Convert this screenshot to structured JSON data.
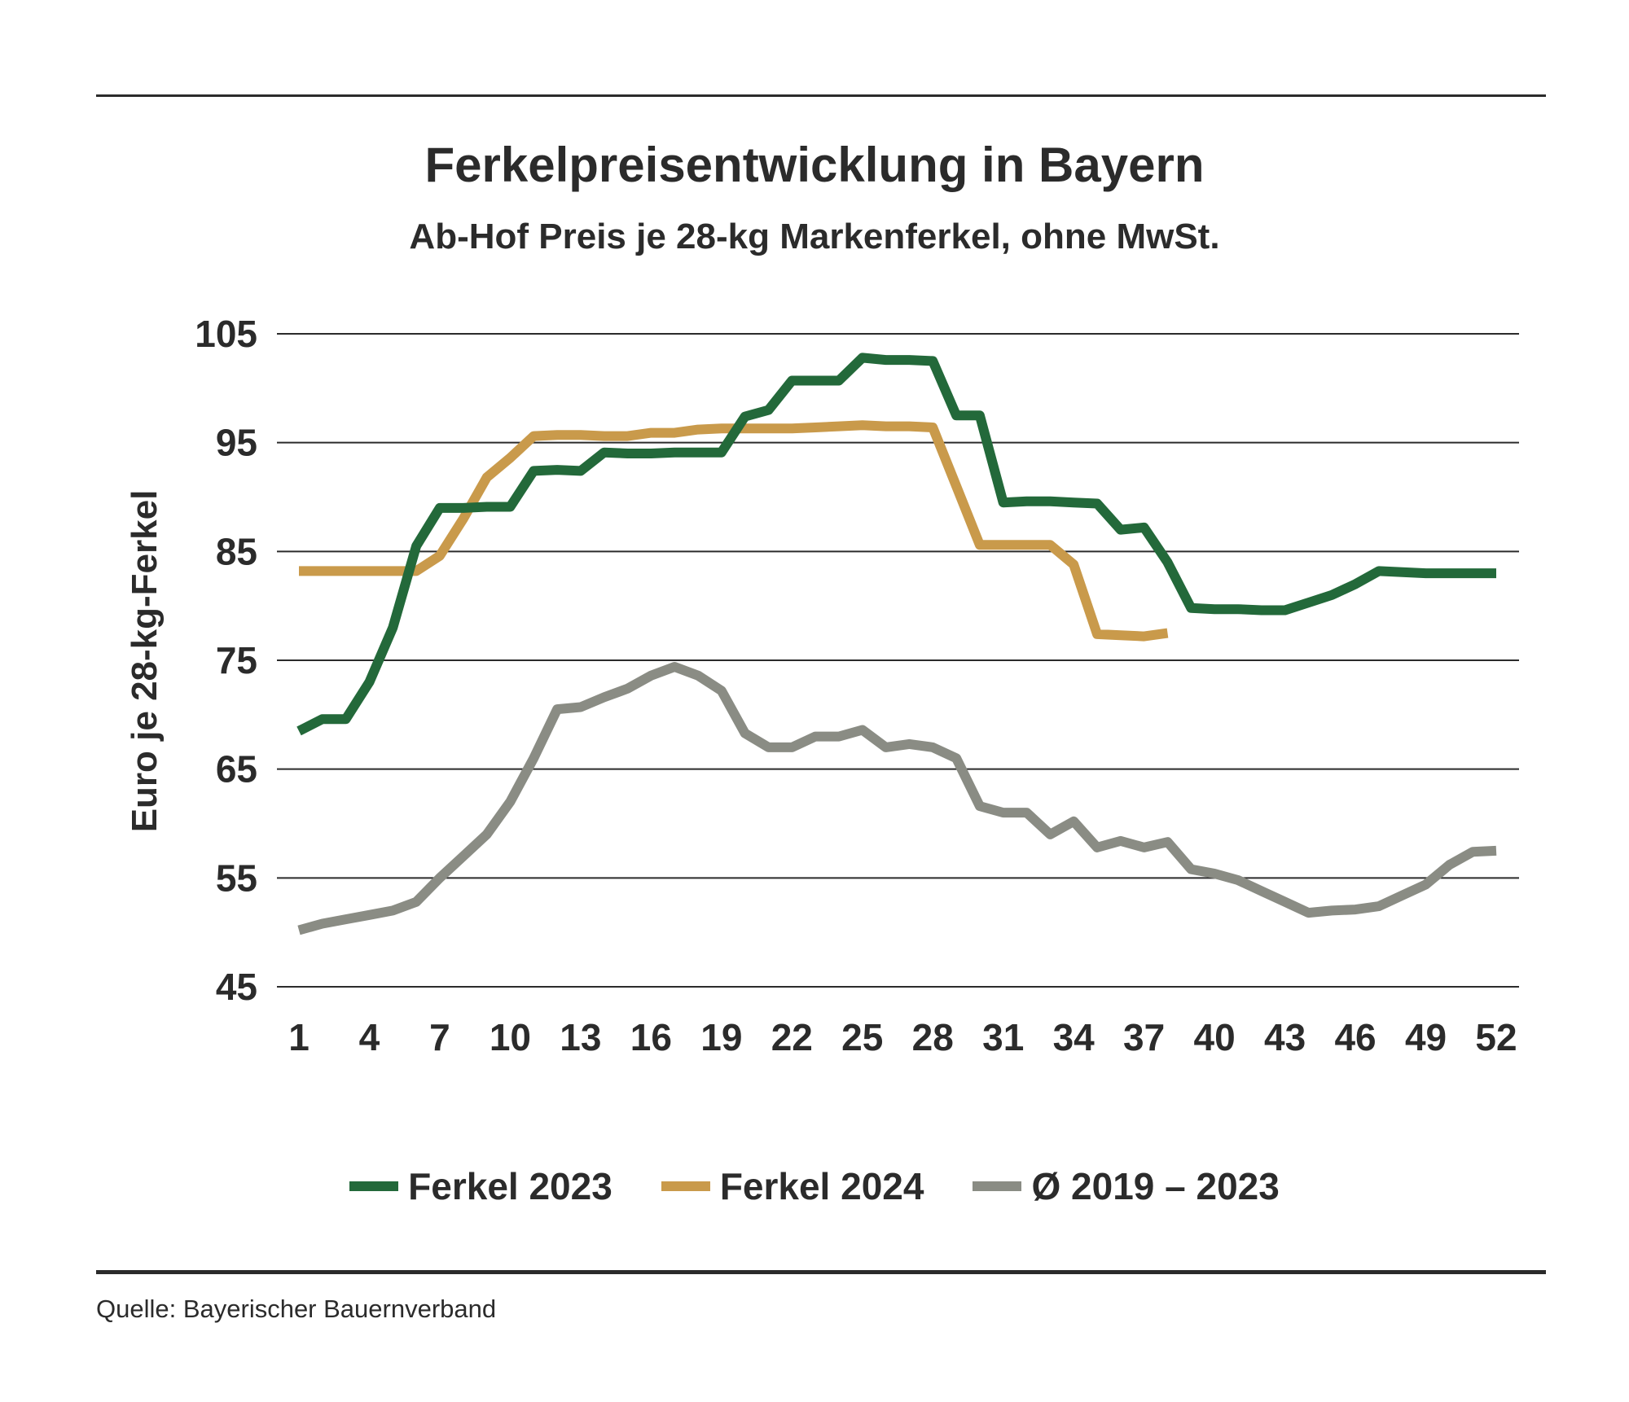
{
  "title": "Ferkelpreisentwicklung in Bayern",
  "subtitle": "Ab-Hof Preis je 28-kg Markenferkel, ohne MwSt.",
  "source": "Quelle: Bayerischer Bauernverband",
  "chart_data": {
    "type": "line",
    "title": "Ferkelpreisentwicklung in Bayern",
    "subtitle": "Ab-Hof Preis je 28-kg Markenferkel, ohne MwSt.",
    "xlabel": "",
    "ylabel": "Euro je 28-kg-Ferkel",
    "xlim": [
      1,
      52
    ],
    "ylim": [
      45,
      105
    ],
    "yticks": [
      45,
      55,
      65,
      75,
      85,
      95,
      105
    ],
    "xticks": [
      1,
      4,
      7,
      10,
      13,
      16,
      19,
      22,
      25,
      28,
      31,
      34,
      37,
      40,
      43,
      46,
      49,
      52
    ],
    "grid": true,
    "legend_position": "bottom",
    "series": [
      {
        "name": "Ferkel 2023",
        "color": "#23693a",
        "x": [
          1,
          2,
          3,
          4,
          5,
          6,
          7,
          8,
          9,
          10,
          11,
          12,
          13,
          14,
          15,
          16,
          17,
          18,
          19,
          20,
          21,
          22,
          23,
          24,
          25,
          26,
          27,
          28,
          29,
          30,
          31,
          32,
          33,
          34,
          35,
          36,
          37,
          38,
          39,
          40,
          41,
          42,
          43,
          44,
          45,
          46,
          47,
          48,
          49,
          50,
          51,
          52
        ],
        "values": [
          68.5,
          69.6,
          69.6,
          73.0,
          78.0,
          85.5,
          89.0,
          89.0,
          89.1,
          89.1,
          92.4,
          92.5,
          92.4,
          94.1,
          94.0,
          94.0,
          94.1,
          94.1,
          94.1,
          97.4,
          98.0,
          100.7,
          100.7,
          100.7,
          102.8,
          102.6,
          102.6,
          102.5,
          97.5,
          97.5,
          89.5,
          89.6,
          89.6,
          89.5,
          89.4,
          87.0,
          87.2,
          84.0,
          79.8,
          79.7,
          79.7,
          79.6,
          79.6,
          80.3,
          81.0,
          82.0,
          83.2,
          83.1,
          83.0,
          83.0,
          83.0,
          83.0
        ]
      },
      {
        "name": "Ferkel 2024",
        "color": "#c99a4b",
        "x": [
          1,
          2,
          3,
          4,
          5,
          6,
          7,
          8,
          9,
          10,
          11,
          12,
          13,
          14,
          15,
          16,
          17,
          18,
          19,
          20,
          21,
          22,
          23,
          24,
          25,
          26,
          27,
          28,
          29,
          30,
          31,
          32,
          33,
          34,
          35,
          36,
          37,
          38
        ],
        "values": [
          83.2,
          83.2,
          83.2,
          83.2,
          83.2,
          83.2,
          84.6,
          88.0,
          91.8,
          93.6,
          95.6,
          95.7,
          95.7,
          95.6,
          95.6,
          95.9,
          95.9,
          96.2,
          96.3,
          96.3,
          96.3,
          96.3,
          96.4,
          96.5,
          96.6,
          96.5,
          96.5,
          96.4,
          91.0,
          85.6,
          85.6,
          85.6,
          85.6,
          83.8,
          77.4,
          77.3,
          77.2,
          77.5
        ]
      },
      {
        "name": "Ø 2019 – 2023",
        "color": "#8a8c84",
        "x": [
          1,
          2,
          3,
          4,
          5,
          6,
          7,
          8,
          9,
          10,
          11,
          12,
          13,
          14,
          15,
          16,
          17,
          18,
          19,
          20,
          21,
          22,
          23,
          24,
          25,
          26,
          27,
          28,
          29,
          30,
          31,
          32,
          33,
          34,
          35,
          36,
          37,
          38,
          39,
          40,
          41,
          42,
          43,
          44,
          45,
          46,
          47,
          48,
          49,
          50,
          51,
          52
        ],
        "values": [
          50.2,
          50.8,
          51.2,
          51.6,
          52.0,
          52.8,
          55.0,
          57.0,
          59.0,
          62.0,
          66.0,
          70.5,
          70.7,
          71.6,
          72.4,
          73.6,
          74.4,
          73.6,
          72.2,
          68.3,
          67.0,
          67.0,
          68.0,
          68.0,
          68.6,
          67.0,
          67.3,
          67.0,
          66.0,
          61.6,
          61.0,
          61.0,
          59.0,
          60.2,
          57.8,
          58.4,
          57.8,
          58.3,
          55.8,
          55.4,
          54.8,
          53.8,
          52.8,
          51.8,
          52.0,
          52.1,
          52.4,
          53.4,
          54.4,
          56.2,
          57.4,
          57.5
        ]
      }
    ]
  }
}
